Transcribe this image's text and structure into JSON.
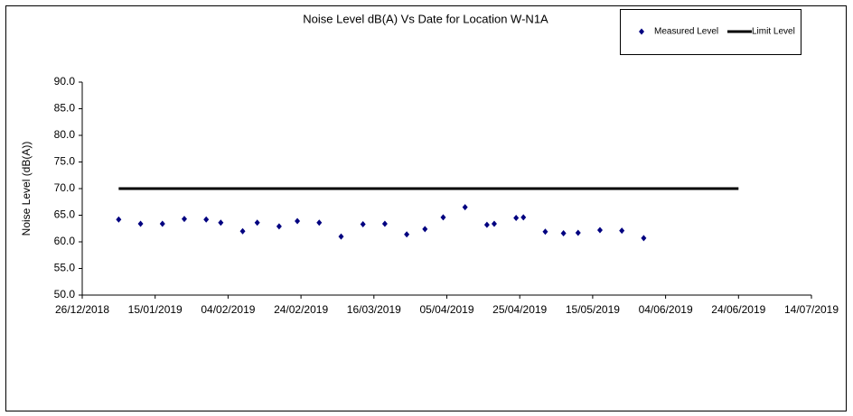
{
  "chart_data": {
    "type": "scatter",
    "title": "Noise Level dB(A) Vs Date for Location W-N1A",
    "y_label": "Noise Level (dB(A))",
    "series": [
      {
        "name": "Measured Level",
        "type": "scatter",
        "color": "#000080",
        "x": [
          "2019-01-05",
          "2019-01-11",
          "2019-01-17",
          "2019-01-23",
          "2019-01-29",
          "2019-02-02",
          "2019-02-08",
          "2019-02-12",
          "2019-02-18",
          "2019-02-23",
          "2019-03-01",
          "2019-03-07",
          "2019-03-13",
          "2019-03-19",
          "2019-03-25",
          "2019-03-30",
          "2019-04-04",
          "2019-04-10",
          "2019-04-16",
          "2019-04-18",
          "2019-04-24",
          "2019-04-26",
          "2019-05-02",
          "2019-05-07",
          "2019-05-11",
          "2019-05-17",
          "2019-05-23",
          "2019-05-29"
        ],
        "values": [
          64.2,
          63.4,
          63.4,
          64.3,
          64.2,
          63.6,
          62.0,
          63.6,
          62.9,
          63.9,
          63.6,
          61.0,
          63.3,
          63.4,
          61.4,
          62.4,
          64.6,
          66.5,
          63.2,
          63.4,
          64.5,
          64.6,
          61.9,
          61.6,
          61.7,
          62.2,
          62.1,
          60.7
        ]
      },
      {
        "name": "Limit Level",
        "type": "line",
        "color": "#000000",
        "x": [
          "2019-01-05",
          "2019-06-24"
        ],
        "values": [
          70,
          70
        ]
      }
    ],
    "xlim": [
      "2018-12-26",
      "2019-07-14"
    ],
    "xticks": [
      {
        "value": "2018-12-26",
        "label": "26/12/2018"
      },
      {
        "value": "2019-01-15",
        "label": "15/01/2019"
      },
      {
        "value": "2019-02-04",
        "label": "04/02/2019"
      },
      {
        "value": "2019-02-24",
        "label": "24/02/2019"
      },
      {
        "value": "2019-03-16",
        "label": "16/03/2019"
      },
      {
        "value": "2019-04-05",
        "label": "05/04/2019"
      },
      {
        "value": "2019-04-25",
        "label": "25/04/2019"
      },
      {
        "value": "2019-05-15",
        "label": "15/05/2019"
      },
      {
        "value": "2019-06-04",
        "label": "04/06/2019"
      },
      {
        "value": "2019-06-24",
        "label": "24/06/2019"
      },
      {
        "value": "2019-07-14",
        "label": "14/07/2019"
      }
    ],
    "ylim": [
      50,
      90
    ],
    "yticks": [
      {
        "value": 50,
        "label": "50.0"
      },
      {
        "value": 55,
        "label": "55.0"
      },
      {
        "value": 60,
        "label": "60.0"
      },
      {
        "value": 65,
        "label": "65.0"
      },
      {
        "value": 70,
        "label": "70.0"
      },
      {
        "value": 75,
        "label": "75.0"
      },
      {
        "value": 80,
        "label": "80.0"
      },
      {
        "value": 85,
        "label": "85.0"
      },
      {
        "value": 90,
        "label": "90.0"
      }
    ],
    "grid": false,
    "legend": "top-right"
  }
}
